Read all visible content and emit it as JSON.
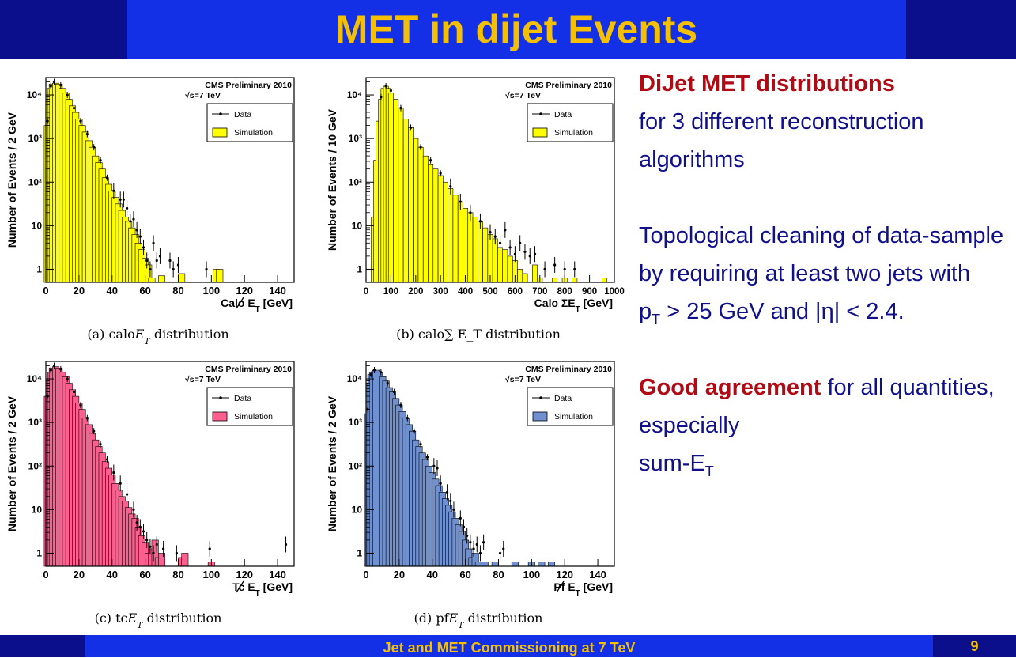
{
  "slide": {
    "title": "MET in dijet Events",
    "footer": "Jet and MET Commissioning at 7 TeV",
    "page_number": "9",
    "colors": {
      "title_bar": "#0b0f8c",
      "title_mid": "#1430e6",
      "title_text": "#f5c000",
      "body_text": "#10108a",
      "highlight_text": "#b00a14"
    }
  },
  "text": {
    "heading1": "DiJet MET distributions",
    "line1": "for 3 different reconstruction algorithms",
    "line2a": "Topological cleaning of data-sample by requiring at least two jets with",
    "line2b_p": "p",
    "line2b_sub": "T",
    "line2b_rest": " > 25 GeV and |η| < 2.4.",
    "heading2": "Good agreement",
    "line3": " for all quantities, especially",
    "line4": "sum-E",
    "line4_sub": "T"
  },
  "chart_data": [
    {
      "type": "bar",
      "id": "a",
      "caption": "(a) calo̸E_T distribution",
      "caption_text": "(a) calo",
      "caption_sym": "E",
      "caption_sub": "T",
      "caption_tail": " distribution",
      "xlabel": "Calo E_T [GeV]",
      "xlabel_pre": "Calo ",
      "xlabel_sym": "E",
      "xlabel_sub": "T",
      "xlabel_post": " [GeV]",
      "ylabel": "Number of Events / 2 GeV",
      "xlim": [
        0,
        150
      ],
      "xticks": [
        "0",
        "20",
        "40",
        "60",
        "80",
        "100",
        "120",
        "140"
      ],
      "yticks": [
        "1",
        "10",
        "10²",
        "10³",
        "10⁴"
      ],
      "ylim_log10": [
        -0.3,
        4.4
      ],
      "log_y": true,
      "legend": {
        "title": "CMS Preliminary 2010",
        "energy": "√s=7 TeV",
        "data_label": "Data",
        "sim_label": "Simulation",
        "position": "top-right"
      },
      "sim_color": "#ffff00",
      "peak_x": 8,
      "peak_log": 4.25,
      "cutoff_x": 66,
      "sim": [
        [
          1,
          3.3
        ],
        [
          2,
          3.9
        ],
        [
          3,
          4.15
        ],
        [
          4,
          4.25
        ],
        [
          6,
          4.27
        ],
        [
          8,
          4.25
        ],
        [
          10,
          4.15
        ],
        [
          12,
          4.05
        ],
        [
          14,
          3.9
        ],
        [
          16,
          3.75
        ],
        [
          18,
          3.6
        ],
        [
          20,
          3.45
        ],
        [
          22,
          3.3
        ],
        [
          24,
          3.15
        ],
        [
          26,
          2.95
        ],
        [
          28,
          2.8
        ],
        [
          30,
          2.6
        ],
        [
          32,
          2.45
        ],
        [
          34,
          2.3
        ],
        [
          36,
          2.1
        ],
        [
          38,
          1.95
        ],
        [
          40,
          1.8
        ],
        [
          42,
          1.65
        ],
        [
          44,
          1.5
        ],
        [
          46,
          1.35
        ],
        [
          48,
          1.2
        ],
        [
          50,
          1.1
        ],
        [
          52,
          0.95
        ],
        [
          54,
          0.8
        ],
        [
          56,
          0.6
        ],
        [
          58,
          0.45
        ],
        [
          60,
          0.25
        ],
        [
          62,
          0.1
        ],
        [
          64,
          -0.2
        ]
      ],
      "data_points": [
        [
          1,
          3.4
        ],
        [
          3,
          4.2
        ],
        [
          5,
          4.3
        ],
        [
          9,
          4.22
        ],
        [
          13,
          4.0
        ],
        [
          17,
          3.7
        ],
        [
          21,
          3.4
        ],
        [
          25,
          3.1
        ],
        [
          29,
          2.8
        ],
        [
          33,
          2.5
        ],
        [
          37,
          2.1
        ],
        [
          41,
          1.8
        ],
        [
          45,
          1.6
        ],
        [
          47,
          1.6
        ],
        [
          49,
          1.4
        ],
        [
          51,
          1.1
        ],
        [
          53,
          1.15
        ],
        [
          55,
          0.9
        ],
        [
          57,
          0.75
        ],
        [
          59,
          0.5
        ],
        [
          61,
          0.2
        ],
        [
          63,
          0.0
        ],
        [
          65,
          0.6
        ],
        [
          67,
          0.2
        ],
        [
          69,
          0.3
        ],
        [
          75,
          0.2
        ],
        [
          77,
          0.0
        ],
        [
          80,
          0.1
        ],
        [
          97,
          0.0
        ]
      ],
      "sim_tail": [
        [
          70,
          -0.15
        ],
        [
          82,
          -0.1
        ],
        [
          103,
          0.0
        ],
        [
          105,
          0.0
        ]
      ]
    },
    {
      "type": "bar",
      "id": "b",
      "caption_text": "(b) calo",
      "caption_sym": "∑",
      "caption_sub": "",
      "caption_tail": " E_T distribution",
      "xlabel_pre": "Calo ",
      "xlabel_sym": "ΣE",
      "xlabel_sub": "T",
      "xlabel_post": " [GeV]",
      "ylabel": "Number of Events / 10 GeV",
      "xlim": [
        0,
        1000
      ],
      "xticks": [
        "0",
        "100",
        "200",
        "300",
        "400",
        "500",
        "600",
        "700",
        "800",
        "900",
        "1000"
      ],
      "xtick_values": [
        0,
        100,
        200,
        300,
        400,
        500,
        600,
        700,
        800,
        900,
        1000
      ],
      "yticks": [
        "1",
        "10",
        "10²",
        "10³",
        "10⁴"
      ],
      "ylim_log10": [
        -0.3,
        4.4
      ],
      "log_y": true,
      "legend": {
        "title": "CMS Preliminary 2010",
        "energy": "√s=7 TeV",
        "data_label": "Data",
        "sim_label": "Simulation",
        "position": "top-right"
      },
      "sim_color": "#ffff00",
      "sim": [
        [
          30,
          1.2
        ],
        [
          40,
          2.5
        ],
        [
          50,
          3.4
        ],
        [
          60,
          3.9
        ],
        [
          70,
          4.15
        ],
        [
          80,
          4.2
        ],
        [
          90,
          4.15
        ],
        [
          100,
          4.05
        ],
        [
          120,
          3.9
        ],
        [
          140,
          3.7
        ],
        [
          160,
          3.45
        ],
        [
          180,
          3.25
        ],
        [
          200,
          3.0
        ],
        [
          220,
          2.8
        ],
        [
          240,
          2.6
        ],
        [
          260,
          2.4
        ],
        [
          280,
          2.3
        ],
        [
          300,
          2.15
        ],
        [
          320,
          2.0
        ],
        [
          340,
          1.85
        ],
        [
          360,
          1.7
        ],
        [
          380,
          1.55
        ],
        [
          400,
          1.4
        ],
        [
          420,
          1.3
        ],
        [
          440,
          1.2
        ],
        [
          460,
          1.1
        ],
        [
          480,
          0.95
        ],
        [
          500,
          0.8
        ],
        [
          520,
          0.7
        ],
        [
          540,
          0.5
        ],
        [
          560,
          0.45
        ],
        [
          580,
          0.3
        ],
        [
          600,
          0.2
        ],
        [
          620,
          0.0
        ],
        [
          640,
          -0.1
        ],
        [
          680,
          0.1
        ],
        [
          700,
          -0.2
        ],
        [
          760,
          -0.2
        ],
        [
          800,
          -0.2
        ],
        [
          840,
          -0.2
        ],
        [
          960,
          -0.2
        ]
      ],
      "data_points": [
        [
          60,
          3.95
        ],
        [
          80,
          4.2
        ],
        [
          100,
          4.1
        ],
        [
          140,
          3.7
        ],
        [
          180,
          3.25
        ],
        [
          220,
          2.8
        ],
        [
          260,
          2.5
        ],
        [
          300,
          2.2
        ],
        [
          340,
          1.9
        ],
        [
          380,
          1.55
        ],
        [
          420,
          1.3
        ],
        [
          460,
          1.1
        ],
        [
          500,
          0.85
        ],
        [
          520,
          0.75
        ],
        [
          540,
          0.6
        ],
        [
          560,
          0.9
        ],
        [
          580,
          0.5
        ],
        [
          600,
          0.35
        ],
        [
          620,
          0.6
        ],
        [
          640,
          0.4
        ],
        [
          660,
          0.3
        ],
        [
          680,
          0.35
        ],
        [
          720,
          0.0
        ],
        [
          760,
          0.1
        ],
        [
          800,
          0.0
        ],
        [
          840,
          0.0
        ]
      ]
    },
    {
      "type": "bar",
      "id": "c",
      "caption_text": "(c) tc",
      "caption_sym": "E",
      "caption_sub": "T",
      "caption_tail": " distribution",
      "xlabel_pre": "Tc ",
      "xlabel_sym": "E",
      "xlabel_sub": "T",
      "xlabel_post": " [GeV]",
      "ylabel": "Number of Events / 2 GeV",
      "xlim": [
        0,
        150
      ],
      "xticks": [
        "0",
        "20",
        "40",
        "60",
        "80",
        "100",
        "120",
        "140"
      ],
      "yticks": [
        "1",
        "10",
        "10²",
        "10³",
        "10⁴"
      ],
      "ylim_log10": [
        -0.3,
        4.4
      ],
      "log_y": true,
      "legend": {
        "title": "CMS Preliminary 2010",
        "energy": "√s=7 TeV",
        "data_label": "Data",
        "sim_label": "Simulation",
        "position": "top-right"
      },
      "sim_color": "#ff5f8f",
      "sim": [
        [
          1,
          3.6
        ],
        [
          2,
          3.95
        ],
        [
          3,
          4.15
        ],
        [
          4,
          4.25
        ],
        [
          6,
          4.28
        ],
        [
          8,
          4.25
        ],
        [
          10,
          4.15
        ],
        [
          12,
          4.05
        ],
        [
          14,
          3.9
        ],
        [
          16,
          3.75
        ],
        [
          18,
          3.6
        ],
        [
          20,
          3.45
        ],
        [
          22,
          3.3
        ],
        [
          24,
          3.1
        ],
        [
          26,
          2.95
        ],
        [
          28,
          2.75
        ],
        [
          30,
          2.6
        ],
        [
          32,
          2.45
        ],
        [
          34,
          2.3
        ],
        [
          36,
          2.1
        ],
        [
          38,
          1.95
        ],
        [
          40,
          1.8
        ],
        [
          42,
          1.6
        ],
        [
          44,
          1.45
        ],
        [
          46,
          1.3
        ],
        [
          48,
          1.2
        ],
        [
          50,
          1.05
        ],
        [
          52,
          0.9
        ],
        [
          54,
          0.8
        ],
        [
          56,
          0.6
        ],
        [
          58,
          0.4
        ],
        [
          60,
          0.25
        ],
        [
          62,
          0.0
        ],
        [
          64,
          0.1
        ],
        [
          66,
          0.3
        ],
        [
          68,
          -0.1
        ],
        [
          70,
          0.0
        ]
      ],
      "data_points": [
        [
          1,
          3.6
        ],
        [
          3,
          4.2
        ],
        [
          5,
          4.3
        ],
        [
          9,
          4.22
        ],
        [
          13,
          4.0
        ],
        [
          17,
          3.7
        ],
        [
          21,
          3.4
        ],
        [
          25,
          3.1
        ],
        [
          29,
          2.8
        ],
        [
          33,
          2.5
        ],
        [
          37,
          2.15
        ],
        [
          41,
          1.85
        ],
        [
          45,
          1.6
        ],
        [
          49,
          1.35
        ],
        [
          53,
          1.0
        ],
        [
          55,
          0.7
        ],
        [
          57,
          0.6
        ],
        [
          59,
          0.5
        ],
        [
          61,
          0.3
        ],
        [
          63,
          0.15
        ],
        [
          65,
          0.0
        ],
        [
          67,
          0.2
        ],
        [
          71,
          0.1
        ],
        [
          79,
          0.0
        ],
        [
          99,
          0.1
        ],
        [
          145,
          0.2
        ]
      ],
      "sim_tail": [
        [
          82,
          -0.1
        ],
        [
          84,
          0.0
        ],
        [
          100,
          -0.2
        ]
      ]
    },
    {
      "type": "bar",
      "id": "d",
      "caption_text": "(d) pf",
      "caption_sym": "E",
      "caption_sub": "T",
      "caption_tail": " distribution",
      "xlabel_pre": "Pf ",
      "xlabel_sym": "E",
      "xlabel_sub": "T",
      "xlabel_post": " [GeV]",
      "ylabel": "Number of Events / 2 GeV",
      "xlim": [
        0,
        150
      ],
      "xticks": [
        "0",
        "20",
        "40",
        "60",
        "80",
        "100",
        "120",
        "140"
      ],
      "yticks": [
        "1",
        "10",
        "10²",
        "10³",
        "10⁴"
      ],
      "ylim_log10": [
        -0.3,
        4.4
      ],
      "log_y": true,
      "legend": {
        "title": "CMS Preliminary 2010",
        "energy": "√s=7 TeV",
        "data_label": "Data",
        "sim_label": "Simulation",
        "position": "top-right"
      },
      "sim_color": "#7090d0",
      "sim": [
        [
          1,
          3.2
        ],
        [
          2,
          3.9
        ],
        [
          3,
          4.1
        ],
        [
          4,
          4.15
        ],
        [
          6,
          4.2
        ],
        [
          8,
          4.15
        ],
        [
          10,
          4.05
        ],
        [
          12,
          3.95
        ],
        [
          14,
          3.8
        ],
        [
          16,
          3.7
        ],
        [
          18,
          3.55
        ],
        [
          20,
          3.4
        ],
        [
          22,
          3.25
        ],
        [
          24,
          3.1
        ],
        [
          26,
          2.95
        ],
        [
          28,
          2.8
        ],
        [
          30,
          2.6
        ],
        [
          32,
          2.45
        ],
        [
          34,
          2.3
        ],
        [
          36,
          2.15
        ],
        [
          38,
          2.0
        ],
        [
          40,
          1.85
        ],
        [
          42,
          1.7
        ],
        [
          44,
          1.55
        ],
        [
          46,
          1.4
        ],
        [
          48,
          1.25
        ],
        [
          50,
          1.1
        ],
        [
          52,
          0.95
        ],
        [
          54,
          0.8
        ],
        [
          56,
          0.65
        ],
        [
          58,
          0.5
        ],
        [
          60,
          0.3
        ],
        [
          62,
          0.1
        ],
        [
          64,
          -0.1
        ],
        [
          66,
          0.0
        ],
        [
          68,
          -0.2
        ]
      ],
      "data_points": [
        [
          1,
          3.3
        ],
        [
          3,
          4.1
        ],
        [
          5,
          4.2
        ],
        [
          9,
          4.15
        ],
        [
          13,
          3.9
        ],
        [
          17,
          3.7
        ],
        [
          21,
          3.4
        ],
        [
          25,
          3.1
        ],
        [
          29,
          2.8
        ],
        [
          33,
          2.5
        ],
        [
          37,
          2.2
        ],
        [
          41,
          2.0
        ],
        [
          43,
          1.95
        ],
        [
          45,
          1.6
        ],
        [
          49,
          1.4
        ],
        [
          51,
          1.2
        ],
        [
          53,
          1.0
        ],
        [
          57,
          0.8
        ],
        [
          59,
          0.6
        ],
        [
          61,
          0.4
        ],
        [
          63,
          0.25
        ],
        [
          65,
          0.1
        ],
        [
          67,
          0.2
        ],
        [
          69,
          0.0
        ],
        [
          71,
          0.25
        ],
        [
          81,
          0.0
        ],
        [
          83,
          0.1
        ]
      ],
      "sim_tail": [
        [
          72,
          -0.2
        ],
        [
          78,
          -0.2
        ],
        [
          90,
          -0.2
        ],
        [
          100,
          -0.2
        ],
        [
          106,
          -0.2
        ],
        [
          112,
          -0.2
        ]
      ]
    }
  ]
}
